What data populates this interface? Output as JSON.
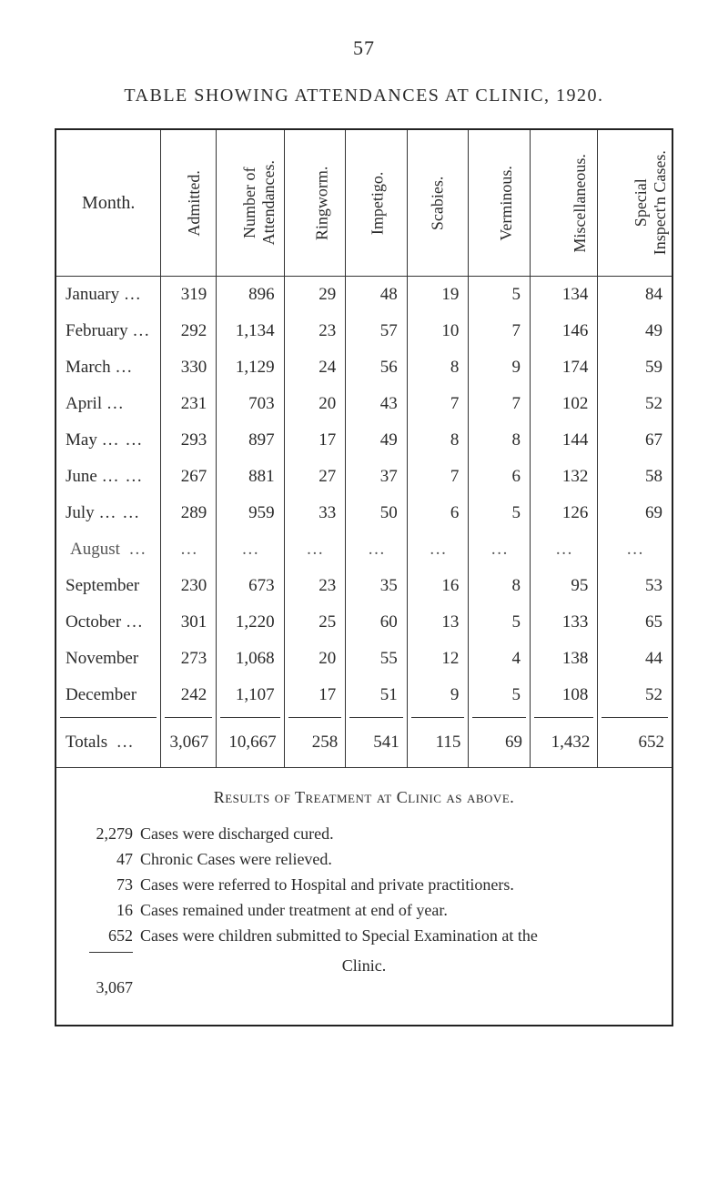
{
  "pageNumber": "57",
  "title": "TABLE SHOWING ATTENDANCES AT CLINIC, 1920.",
  "columns": {
    "month": "Month.",
    "admitted": "Admitted.",
    "numberOf": "Number of",
    "attendances": "Attendances.",
    "ringworm": "Ringworm.",
    "impetigo": "Impetigo.",
    "scabies": "Scabies.",
    "verminous": "Verminous.",
    "miscellaneous": "Miscellaneous.",
    "special": "Special",
    "inspectn": "Inspect'n Cases."
  },
  "rows": [
    {
      "month": "January",
      "dots": "…",
      "admitted": "319",
      "att": "896",
      "ring": "29",
      "imp": "48",
      "scab": "19",
      "verm": "5",
      "misc": "134",
      "spec": "84"
    },
    {
      "month": "February",
      "dots": "…",
      "admitted": "292",
      "att": "1,134",
      "ring": "23",
      "imp": "57",
      "scab": "10",
      "verm": "7",
      "misc": "146",
      "spec": "49"
    },
    {
      "month": "March",
      "dots": "…",
      "admitted": "330",
      "att": "1,129",
      "ring": "24",
      "imp": "56",
      "scab": "8",
      "verm": "9",
      "misc": "174",
      "spec": "59"
    },
    {
      "month": "April",
      "dots": "…",
      "admitted": "231",
      "att": "703",
      "ring": "20",
      "imp": "43",
      "scab": "7",
      "verm": "7",
      "misc": "102",
      "spec": "52"
    },
    {
      "month": "May",
      "dots": "…   …",
      "admitted": "293",
      "att": "897",
      "ring": "17",
      "imp": "49",
      "scab": "8",
      "verm": "8",
      "misc": "144",
      "spec": "67"
    },
    {
      "month": "June",
      "dots": "…   …",
      "admitted": "267",
      "att": "881",
      "ring": "27",
      "imp": "37",
      "scab": "7",
      "verm": "6",
      "misc": "132",
      "spec": "58"
    },
    {
      "month": "July",
      "dots": "…   …",
      "admitted": "289",
      "att": "959",
      "ring": "33",
      "imp": "50",
      "scab": "6",
      "verm": "5",
      "misc": "126",
      "spec": "69"
    },
    {
      "month": "August",
      "dots": "…",
      "blank": true
    },
    {
      "month": "September",
      "dots": "",
      "admitted": "230",
      "att": "673",
      "ring": "23",
      "imp": "35",
      "scab": "16",
      "verm": "8",
      "misc": "95",
      "spec": "53"
    },
    {
      "month": "October",
      "dots": "…",
      "admitted": "301",
      "att": "1,220",
      "ring": "25",
      "imp": "60",
      "scab": "13",
      "verm": "5",
      "misc": "133",
      "spec": "65"
    },
    {
      "month": "November",
      "dots": "",
      "admitted": "273",
      "att": "1,068",
      "ring": "20",
      "imp": "55",
      "scab": "12",
      "verm": "4",
      "misc": "138",
      "spec": "44"
    },
    {
      "month": "December",
      "dots": "",
      "admitted": "242",
      "att": "1,107",
      "ring": "17",
      "imp": "51",
      "scab": "9",
      "verm": "5",
      "misc": "108",
      "spec": "52"
    }
  ],
  "ellipsis": "…",
  "totals": {
    "label": "Totals",
    "dots": "…",
    "admitted": "3,067",
    "att": "10,667",
    "ring": "258",
    "imp": "541",
    "scab": "115",
    "verm": "69",
    "misc": "1,432",
    "spec": "652"
  },
  "results": {
    "title": "Results of Treatment at Clinic as above.",
    "lines": [
      {
        "n": "2,279",
        "t": "Cases were discharged cured."
      },
      {
        "n": "47",
        "t": "Chronic Cases were relieved."
      },
      {
        "n": "73",
        "t": "Cases were referred to Hospital and private practitioners."
      },
      {
        "n": "16",
        "t": "Cases remained under treatment at end of year."
      },
      {
        "n": "652",
        "t": "Cases were children submitted to Special Examination at the"
      }
    ],
    "clinicWord": "Clinic.",
    "sum": "3,067"
  }
}
